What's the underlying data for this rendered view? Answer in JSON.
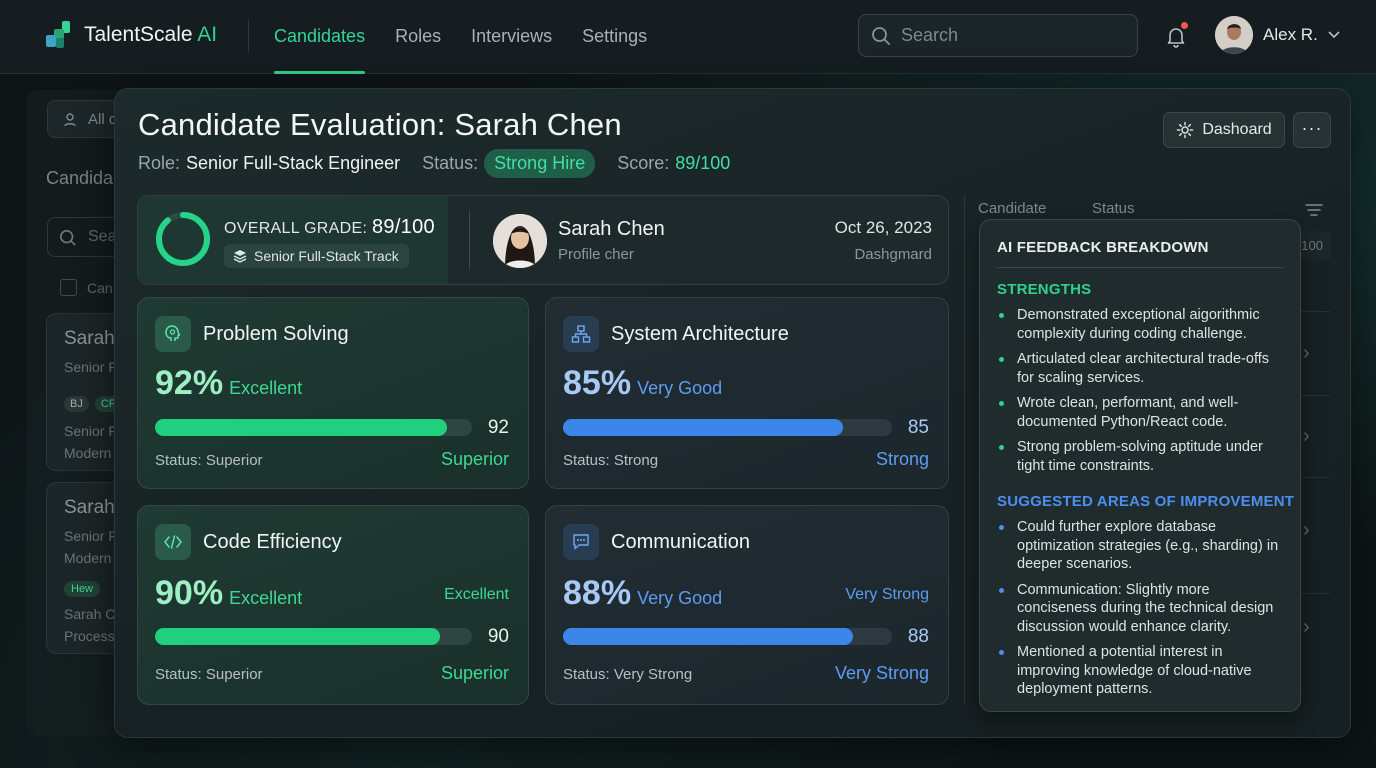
{
  "nav": {
    "brand": "TalentScale",
    "brand_accent": "AI",
    "tabs": [
      {
        "label": "Candidates",
        "active": true
      },
      {
        "label": "Roles",
        "active": false
      },
      {
        "label": "Interviews",
        "active": false
      },
      {
        "label": "Settings",
        "active": false
      }
    ],
    "search_placeholder": "Search",
    "user_name": "Alex R."
  },
  "background_list": {
    "filter_chip": "All c",
    "title": "Candida",
    "search_placeholder": "Sea",
    "select_label": "Can",
    "rows": [
      {
        "name": "Sarah",
        "sub": "Senior F"
      },
      {
        "badge1": "BJ",
        "badge2": "CF",
        "sub1": "Senior F",
        "sub2": "Modern"
      },
      {
        "name": "Sarah",
        "sub1": "Senior F",
        "sub2": "Modern"
      },
      {
        "badge": "Hew",
        "sub1": "Sarah C",
        "sub2": "Process"
      }
    ]
  },
  "evaluation": {
    "title": "Candidate Evaluation: Sarah Chen",
    "role_label": "Role:",
    "role": "Senior Full-Stack Engineer",
    "status_label": "Status:",
    "status": "Strong Hire",
    "score_label": "Score:",
    "score": "89/100",
    "dashboard_button": "Dashoard",
    "more_button": "···",
    "overview": {
      "grade_label": "OVERALL GRADE:",
      "grade_value": "89/100",
      "grade_fraction": 0.89,
      "track": "Senior Full-Stack Track",
      "name": "Sarah Chen",
      "subtitle": "Profile cher",
      "date": "Oct 26, 2023",
      "dashboard": "Dashgmard"
    },
    "cards": [
      {
        "title": "Problem Solving",
        "percent": "92%",
        "grade": "Excellent",
        "value": 92,
        "num": "92",
        "status_label": "Status: Superior",
        "status_right": "Superior",
        "extra_right": "",
        "theme": "green"
      },
      {
        "title": "System Architecture",
        "percent": "85%",
        "grade": "Very Good",
        "value": 85,
        "num": "85",
        "status_label": "Status: Strong",
        "status_right": "Strong",
        "extra_right": "",
        "theme": "blue"
      },
      {
        "title": "Code Efficiency",
        "percent": "90%",
        "grade": "Excellent",
        "value": 90,
        "num": "90",
        "status_label": "Status: Superior",
        "status_right": "Superior",
        "extra_right": "Excellent",
        "theme": "green"
      },
      {
        "title": "Communication",
        "percent": "88%",
        "grade": "Very Good",
        "value": 88,
        "num": "88",
        "status_label": "Status: Very Strong",
        "status_right": "Very Strong",
        "extra_right": "Very Strong",
        "theme": "blue"
      }
    ]
  },
  "right_table": {
    "col_candidate": "Candidate",
    "col_status": "Status",
    "partial_value": "100"
  },
  "feedback": {
    "title": "AI FEEDBACK BREAKDOWN",
    "strengths_title": "STRENGTHS",
    "strengths": [
      "Demonstrated exceptional aigorithmic complexity during coding challenge.",
      "Articulated clear architectural trade-offs for scaling services.",
      "Wrote clean, performant, and well-documented Python/React code.",
      "Strong problem-solving aptitude under tight time constraints."
    ],
    "improve_title": "SUGGESTED AREAS OF IMPROVEMENT",
    "improvements": [
      "Could further explore database optimization strategies (e.g., sharding) in deeper scenarios.",
      "Communication: Slightly more conciseness during the technical design discussion would enhance clarity.",
      "Mentioned a potential interest in improving knowledge of cloud-native deployment patterns."
    ]
  },
  "colors": {
    "accent_green": "#2fd18c",
    "accent_blue": "#3b86e8",
    "bg": "#0e1517",
    "panel": "#1d2a2c"
  }
}
